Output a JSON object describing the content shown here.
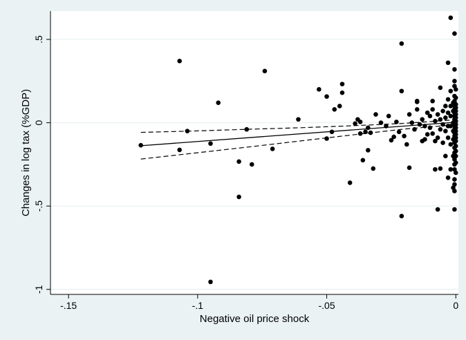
{
  "chart_data": {
    "type": "scatter",
    "xlabel": "Negative oil price shock",
    "ylabel": "Changes in log tax (%GDP)",
    "xlim": [
      -0.157,
      0.001
    ],
    "ylim": [
      -1.03,
      0.67
    ],
    "xticks": [
      {
        "value": -0.15,
        "label": "-.15"
      },
      {
        "value": -0.1,
        "label": "-.1"
      },
      {
        "value": -0.05,
        "label": "-.05"
      },
      {
        "value": 0,
        "label": "0"
      }
    ],
    "yticks": [
      {
        "value": -1,
        "label": "-1"
      },
      {
        "value": -0.5,
        "label": "-.5"
      },
      {
        "value": 0,
        "label": "0"
      },
      {
        "value": 0.5,
        "label": ".5"
      }
    ],
    "grid": "horizontal",
    "colors": {
      "background": "#eaf2f3",
      "plot_area": "#ffffff",
      "points": "#000000",
      "grid": "#e4ecee"
    },
    "points": [
      [
        -0.122,
        -0.135
      ],
      [
        -0.107,
        0.37
      ],
      [
        -0.107,
        -0.163
      ],
      [
        -0.104,
        -0.05
      ],
      [
        -0.095,
        -0.955
      ],
      [
        -0.095,
        -0.125
      ],
      [
        -0.092,
        0.12
      ],
      [
        -0.084,
        -0.445
      ],
      [
        -0.084,
        -0.233
      ],
      [
        -0.081,
        -0.04
      ],
      [
        -0.079,
        -0.25
      ],
      [
        -0.074,
        0.31
      ],
      [
        -0.071,
        -0.157
      ],
      [
        -0.061,
        0.02
      ],
      [
        -0.053,
        0.2
      ],
      [
        -0.05,
        0.157
      ],
      [
        -0.05,
        -0.095
      ],
      [
        -0.048,
        -0.055
      ],
      [
        -0.047,
        0.08
      ],
      [
        -0.045,
        0.1
      ],
      [
        -0.044,
        0.232
      ],
      [
        -0.044,
        0.18
      ],
      [
        -0.041,
        -0.36
      ],
      [
        -0.039,
        -0.005
      ],
      [
        -0.038,
        0.02
      ],
      [
        -0.037,
        0.005
      ],
      [
        -0.037,
        -0.065
      ],
      [
        -0.036,
        -0.225
      ],
      [
        -0.035,
        -0.055
      ],
      [
        -0.034,
        -0.165
      ],
      [
        -0.034,
        -0.03
      ],
      [
        -0.033,
        -0.06
      ],
      [
        -0.032,
        -0.275
      ],
      [
        -0.031,
        0.05
      ],
      [
        -0.029,
        0.0
      ],
      [
        -0.027,
        -0.02
      ],
      [
        -0.026,
        0.04
      ],
      [
        -0.025,
        -0.105
      ],
      [
        -0.024,
        -0.085
      ],
      [
        -0.023,
        0.005
      ],
      [
        -0.022,
        -0.055
      ],
      [
        -0.021,
        0.475
      ],
      [
        -0.021,
        0.19
      ],
      [
        -0.021,
        -0.56
      ],
      [
        -0.02,
        -0.08
      ],
      [
        -0.019,
        -0.13
      ],
      [
        -0.018,
        0.05
      ],
      [
        -0.018,
        -0.27
      ],
      [
        -0.017,
        0.0
      ],
      [
        -0.016,
        -0.04
      ],
      [
        -0.015,
        0.125
      ],
      [
        -0.015,
        0.13
      ],
      [
        -0.015,
        0.08
      ],
      [
        -0.014,
        -0.01
      ],
      [
        -0.013,
        0.02
      ],
      [
        -0.013,
        -0.11
      ],
      [
        -0.012,
        -0.02
      ],
      [
        -0.012,
        -0.1
      ],
      [
        -0.011,
        0.06
      ],
      [
        -0.011,
        -0.07
      ],
      [
        -0.01,
        0.04
      ],
      [
        -0.01,
        -0.03
      ],
      [
        -0.009,
        0.13
      ],
      [
        -0.009,
        0.08
      ],
      [
        -0.009,
        -0.065
      ],
      [
        -0.008,
        0.01
      ],
      [
        -0.008,
        -0.28
      ],
      [
        -0.008,
        -0.11
      ],
      [
        -0.007,
        0.05
      ],
      [
        -0.007,
        -0.52
      ],
      [
        -0.007,
        -0.09
      ],
      [
        -0.006,
        0.21
      ],
      [
        -0.006,
        0.02
      ],
      [
        -0.006,
        -0.04
      ],
      [
        -0.006,
        -0.275
      ],
      [
        -0.005,
        0.07
      ],
      [
        -0.005,
        -0.01
      ],
      [
        -0.005,
        -0.12
      ],
      [
        -0.004,
        0.1
      ],
      [
        -0.004,
        0.03
      ],
      [
        -0.004,
        -0.05
      ],
      [
        -0.004,
        -0.2
      ],
      [
        -0.003,
        0.36
      ],
      [
        -0.003,
        0.14
      ],
      [
        -0.003,
        0.06
      ],
      [
        -0.003,
        -0.02
      ],
      [
        -0.003,
        -0.09
      ],
      [
        -0.003,
        -0.33
      ],
      [
        -0.002,
        0.63
      ],
      [
        -0.002,
        0.19
      ],
      [
        -0.002,
        0.1
      ],
      [
        -0.002,
        0.04
      ],
      [
        -0.002,
        -0.02
      ],
      [
        -0.002,
        -0.13
      ],
      [
        -0.002,
        -0.28
      ],
      [
        -0.001,
        0.12
      ],
      [
        -0.001,
        0.07
      ],
      [
        -0.001,
        0.0
      ],
      [
        -0.001,
        -0.05
      ],
      [
        -0.001,
        -0.1
      ],
      [
        -0.001,
        -0.2
      ],
      [
        -0.001,
        -0.39
      ],
      [
        -0.0005,
        0.535
      ],
      [
        -0.0005,
        0.32
      ],
      [
        -0.0005,
        0.25
      ],
      [
        -0.0005,
        0.22
      ],
      [
        -0.0005,
        0.16
      ],
      [
        -0.0005,
        0.13
      ],
      [
        -0.0005,
        0.1
      ],
      [
        -0.0005,
        0.08
      ],
      [
        -0.0005,
        0.06
      ],
      [
        -0.0005,
        0.04
      ],
      [
        -0.0005,
        0.02
      ],
      [
        -0.0005,
        0.0
      ],
      [
        -0.0005,
        -0.02
      ],
      [
        -0.0005,
        -0.04
      ],
      [
        -0.0005,
        -0.06
      ],
      [
        -0.0005,
        -0.08
      ],
      [
        -0.0005,
        -0.1
      ],
      [
        -0.0005,
        -0.12
      ],
      [
        -0.0005,
        -0.15
      ],
      [
        -0.0005,
        -0.18
      ],
      [
        -0.0005,
        -0.22
      ],
      [
        -0.0005,
        -0.25
      ],
      [
        -0.0005,
        -0.28
      ],
      [
        -0.0005,
        -0.34
      ],
      [
        -0.0005,
        -0.37
      ],
      [
        -0.0005,
        -0.41
      ],
      [
        -0.0005,
        -0.52
      ],
      [
        0.0,
        0.2
      ],
      [
        0.0,
        0.15
      ],
      [
        0.0,
        0.11
      ],
      [
        0.0,
        0.09
      ],
      [
        0.0,
        0.07
      ],
      [
        0.0,
        0.05
      ],
      [
        0.0,
        0.03
      ],
      [
        0.0,
        0.01
      ],
      [
        0.0,
        -0.01
      ],
      [
        0.0,
        -0.03
      ],
      [
        0.0,
        -0.05
      ],
      [
        0.0,
        -0.07
      ],
      [
        0.0,
        -0.09
      ],
      [
        0.0,
        -0.11
      ],
      [
        0.0,
        -0.14
      ],
      [
        0.0,
        -0.17
      ],
      [
        0.0,
        -0.2
      ],
      [
        0.0,
        -0.24
      ],
      [
        0.0,
        -0.3
      ]
    ],
    "fit_line": {
      "x": [
        -0.122,
        0.0
      ],
      "y": [
        -0.138,
        0.003
      ]
    },
    "ci_upper": {
      "x": [
        -0.122,
        -0.1,
        -0.08,
        -0.06,
        -0.04,
        -0.02,
        0.0
      ],
      "y": [
        -0.058,
        -0.049,
        -0.039,
        -0.03,
        -0.018,
        -0.004,
        0.018
      ]
    },
    "ci_lower": {
      "x": [
        -0.122,
        -0.1,
        -0.08,
        -0.06,
        -0.04,
        -0.02,
        0.0
      ],
      "y": [
        -0.218,
        -0.18,
        -0.145,
        -0.109,
        -0.073,
        -0.038,
        -0.012
      ]
    }
  }
}
